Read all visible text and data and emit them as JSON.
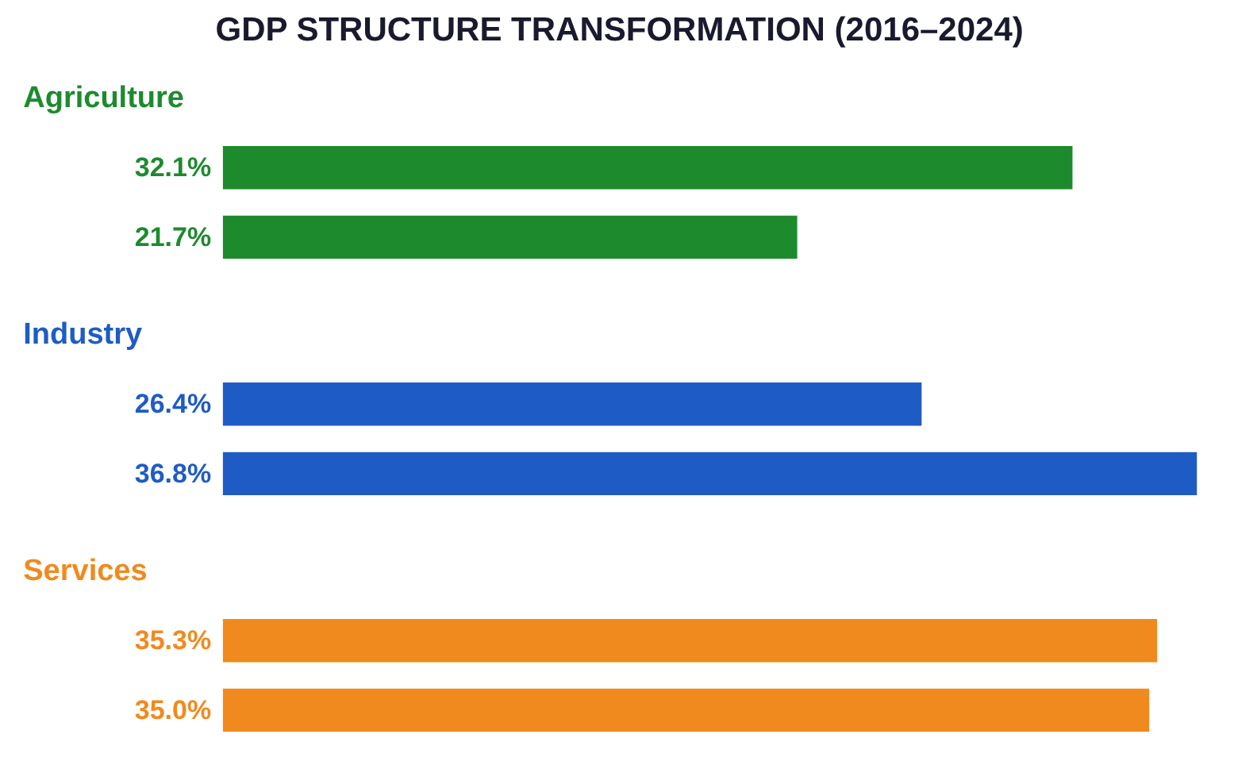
{
  "chart_data": {
    "type": "bar",
    "orientation": "horizontal",
    "title": "GDP STRUCTURE TRANSFORMATION (2016–2024)",
    "categories": [
      "Agriculture",
      "Industry",
      "Services"
    ],
    "series": [
      {
        "values": [
          32.1,
          26.4,
          35.3
        ],
        "colors": [
          "#1e8a2e",
          "#1f5bc4",
          "#f08a1e"
        ],
        "value_labels": [
          "32.1%",
          "26.4%",
          "35.3%"
        ]
      },
      {
        "values": [
          21.7,
          36.8,
          35.0
        ],
        "colors": [
          "#1e8a2e",
          "#1f5bc4",
          "#f08a1e"
        ],
        "value_labels": [
          "21.7%",
          "36.8%",
          "35.0%"
        ]
      }
    ]
  }
}
